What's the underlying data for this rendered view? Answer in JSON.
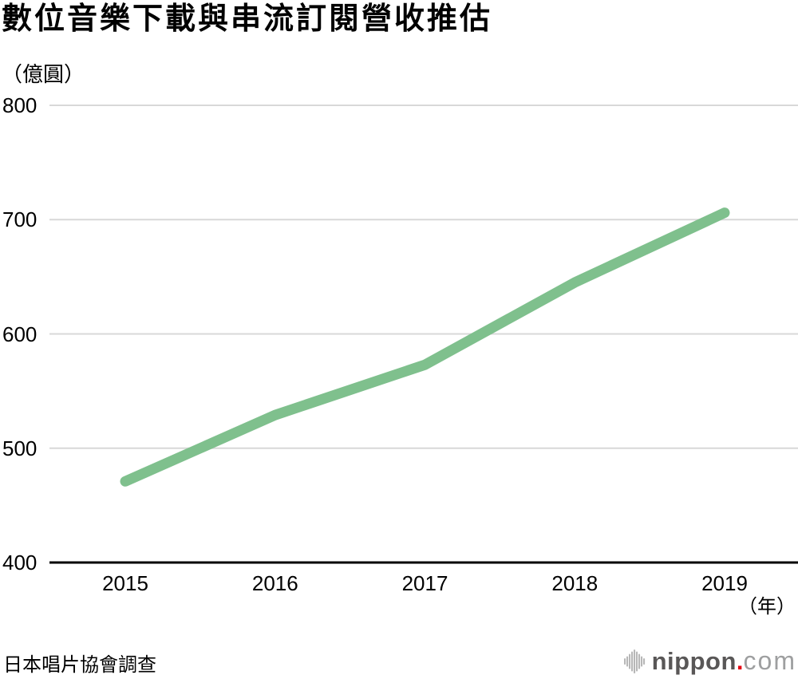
{
  "page": {
    "title": "數位音樂下載與串流訂閱營收推估",
    "y_unit_label": "（億圓）",
    "x_unit_label": "（年）",
    "source": "日本唱片協會調查"
  },
  "chart_data": {
    "type": "line",
    "title": "數位音樂下載與串流訂閱營收推估",
    "categories": [
      "2015",
      "2016",
      "2017",
      "2018",
      "2019"
    ],
    "series": [
      {
        "name": "數位音樂下載與串流訂閱營收",
        "values": [
          471,
          529,
          573,
          645,
          706
        ]
      }
    ],
    "xlabel": "（年）",
    "ylabel": "（億圓）",
    "ylim": [
      400,
      800
    ],
    "yticks": [
      800,
      700,
      600,
      500,
      400
    ],
    "grid": "horizontal-only",
    "legend": "none",
    "colors": {
      "line": "#7fc08d",
      "grid": "#d8d8d8",
      "axis": "#000000",
      "text": "#000000"
    }
  },
  "logo": {
    "icon": "soundwave-bars-icon",
    "brand": "nippon",
    "dot": ".",
    "tld": "com",
    "brand_color": "#595757",
    "dot_color": "#e60012",
    "tld_color": "#9e9fa0",
    "icon_color": "#b7b7b7"
  }
}
